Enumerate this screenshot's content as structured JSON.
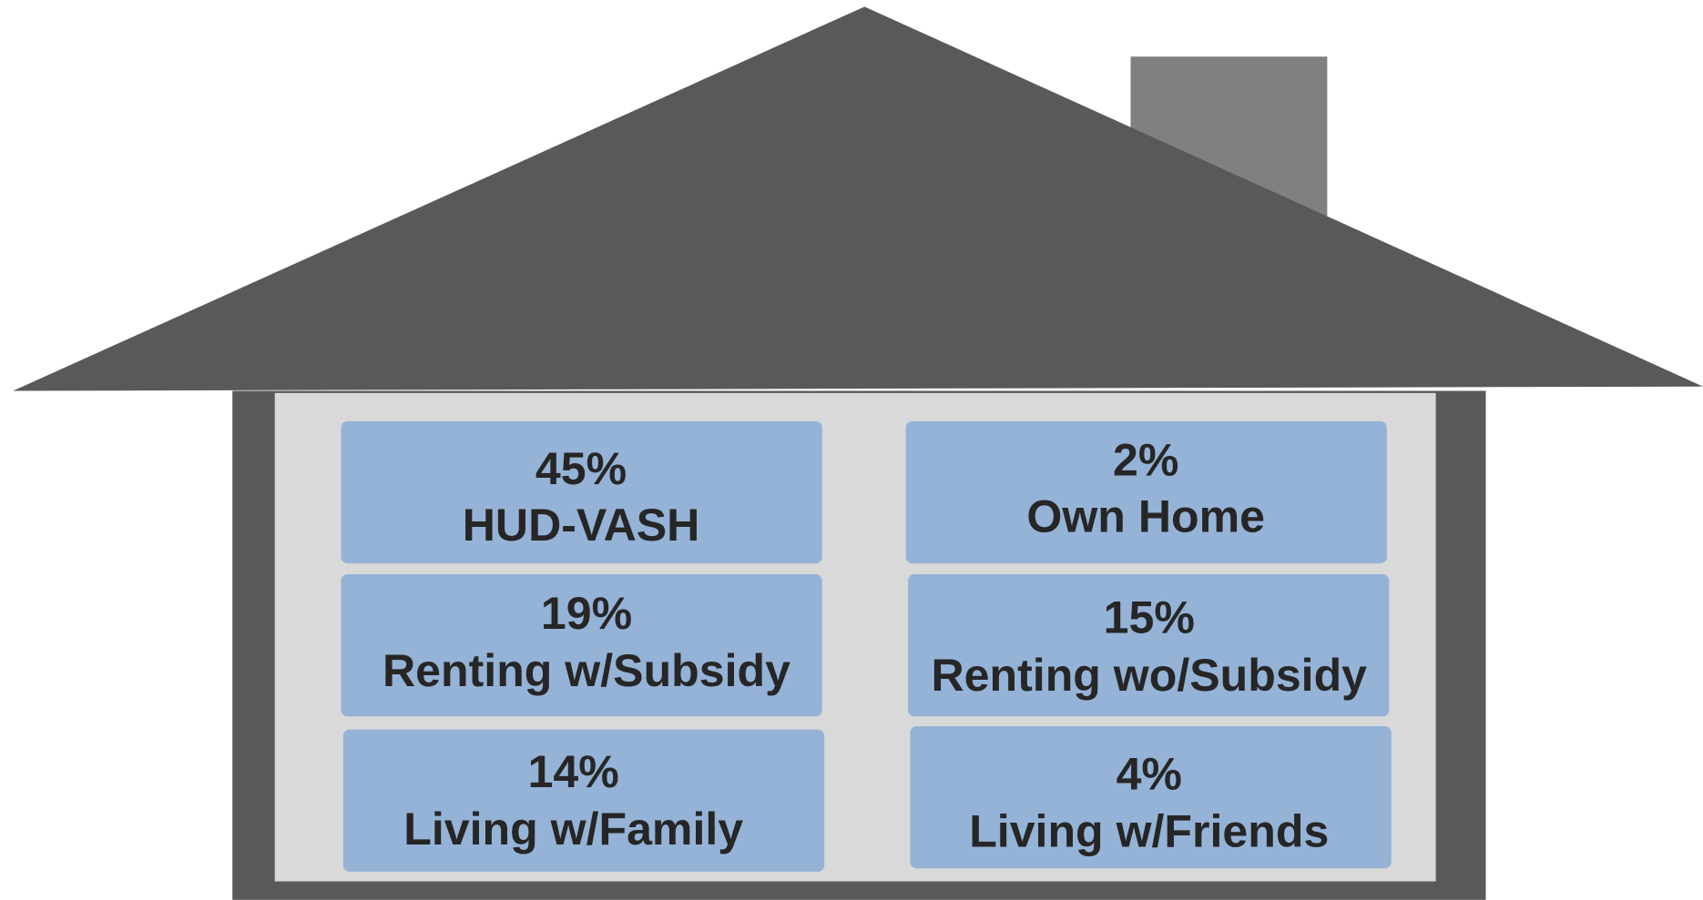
{
  "boxes": [
    {
      "percent": "45%",
      "label": "HUD-VASH"
    },
    {
      "percent": "2%",
      "label": "Own Home"
    },
    {
      "percent": "19%",
      "label": "Renting w/Subsidy"
    },
    {
      "percent": "15%",
      "label": "Renting wo/Subsidy"
    },
    {
      "percent": "14%",
      "label": "Living w/Family"
    },
    {
      "percent": "4%",
      "label": "Living w/Friends"
    }
  ]
}
